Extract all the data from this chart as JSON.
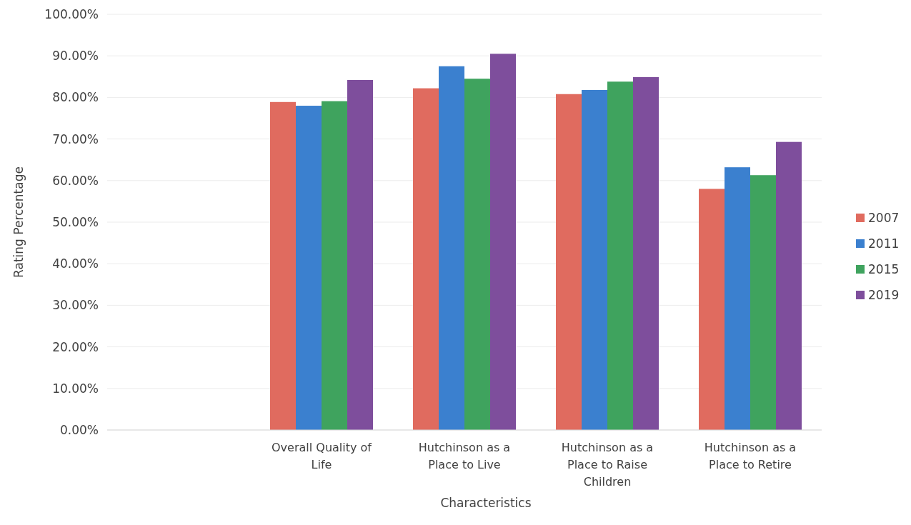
{
  "chart_data": {
    "type": "bar",
    "xlabel": "Characteristics",
    "ylabel": "Rating Percentage",
    "categories": [
      null,
      "Overall Quality of Life",
      "Hutchinson as a Place to Live",
      "Hutchinson as a Place to Raise Children",
      "Hutchinson as a Place to Retire"
    ],
    "series": [
      {
        "name": "2007",
        "color": "#e06b5f",
        "values": [
          null,
          78.9,
          82.2,
          80.8,
          58.0
        ]
      },
      {
        "name": "2011",
        "color": "#3b80cf",
        "values": [
          null,
          78.0,
          87.5,
          81.8,
          63.2
        ]
      },
      {
        "name": "2015",
        "color": "#3fa35e",
        "values": [
          null,
          79.1,
          84.5,
          83.8,
          61.3
        ]
      },
      {
        "name": "2019",
        "color": "#7e4e9c",
        "values": [
          null,
          84.2,
          90.5,
          84.9,
          69.3
        ]
      }
    ],
    "ylim": [
      0,
      100
    ],
    "yticks": [
      {
        "value": 0,
        "label": "0.00%"
      },
      {
        "value": 10,
        "label": "10.00%"
      },
      {
        "value": 20,
        "label": "20.00%"
      },
      {
        "value": 30,
        "label": "30.00%"
      },
      {
        "value": 40,
        "label": "40.00%"
      },
      {
        "value": 50,
        "label": "50.00%"
      },
      {
        "value": 60,
        "label": "60.00%"
      },
      {
        "value": 70,
        "label": "70.00%"
      },
      {
        "value": 80,
        "label": "80.00%"
      },
      {
        "value": 90,
        "label": "90.00%"
      },
      {
        "value": 100,
        "label": "100.00%"
      }
    ],
    "grid": "y",
    "legend": "right"
  }
}
